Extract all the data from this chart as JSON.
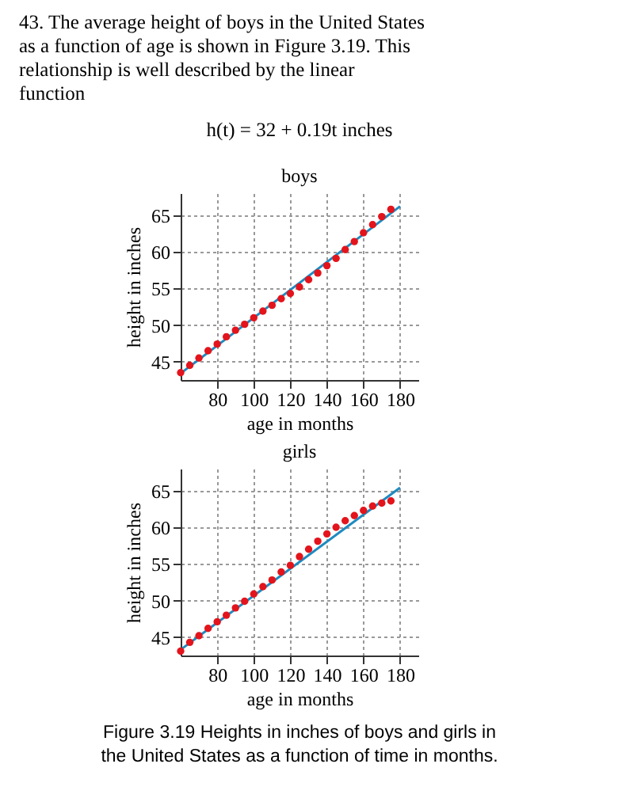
{
  "chart_data": [
    {
      "type": "scatter",
      "title": "boys",
      "xlabel": "age in months",
      "ylabel": "height in inches",
      "annotations": [
        "43. The average height of boys in the United States as a function of age is shown in Figure 3.19. This relationship is well described by the linear function",
        "h(t) = 32 + 0.19t inches"
      ],
      "xlim": [
        60,
        190
      ],
      "ylim": [
        42.5,
        68
      ],
      "xticks": [
        80,
        100,
        120,
        140,
        160,
        180
      ],
      "yticks": [
        45,
        50,
        55,
        60,
        65
      ],
      "grid": true,
      "series": [
        {
          "type": "line",
          "color": "#1f8ac0",
          "x": [
            60,
            180
          ],
          "values": [
            43.4,
            66.2
          ]
        },
        {
          "marker": "circle",
          "color": "#e3141c",
          "x": [
            60,
            65,
            70,
            75,
            80,
            85,
            90,
            95,
            100,
            105,
            110,
            115,
            120,
            125,
            130,
            135,
            140,
            145,
            150,
            155,
            160,
            165,
            170,
            175
          ],
          "values": [
            43.5,
            44.5,
            45.5,
            46.5,
            47.4,
            48.4,
            49.3,
            50.1,
            51.0,
            51.9,
            52.7,
            53.6,
            54.3,
            55.2,
            56.2,
            57.1,
            58.1,
            59.1,
            60.3,
            61.4,
            62.6,
            63.7,
            64.8,
            65.8
          ]
        }
      ]
    },
    {
      "type": "scatter",
      "title": "girls",
      "xlabel": "age in months",
      "ylabel": "height in inches",
      "annotations": [
        "Figure 3.19 Heights in inches of boys and girls in the United States as a function of time in months."
      ],
      "xlim": [
        60,
        190
      ],
      "ylim": [
        42.5,
        68
      ],
      "xticks": [
        80,
        100,
        120,
        140,
        160,
        180
      ],
      "yticks": [
        45,
        50,
        55,
        60,
        65
      ],
      "grid": true,
      "series": [
        {
          "type": "line",
          "color": "#1f8ac0",
          "x": [
            60,
            180
          ],
          "values": [
            43.3,
            65.4
          ]
        },
        {
          "marker": "circle",
          "color": "#e3141c",
          "x": [
            60,
            65,
            70,
            75,
            80,
            85,
            90,
            95,
            100,
            105,
            110,
            115,
            120,
            125,
            130,
            135,
            140,
            145,
            150,
            155,
            160,
            165,
            170,
            175
          ],
          "values": [
            43.1,
            44.3,
            45.2,
            46.2,
            47.1,
            48.0,
            49.0,
            49.9,
            50.9,
            51.9,
            52.8,
            53.9,
            54.8,
            56.0,
            57.0,
            58.1,
            59.1,
            60.0,
            60.9,
            61.6,
            62.3,
            62.9,
            63.3,
            63.6
          ]
        }
      ]
    }
  ]
}
